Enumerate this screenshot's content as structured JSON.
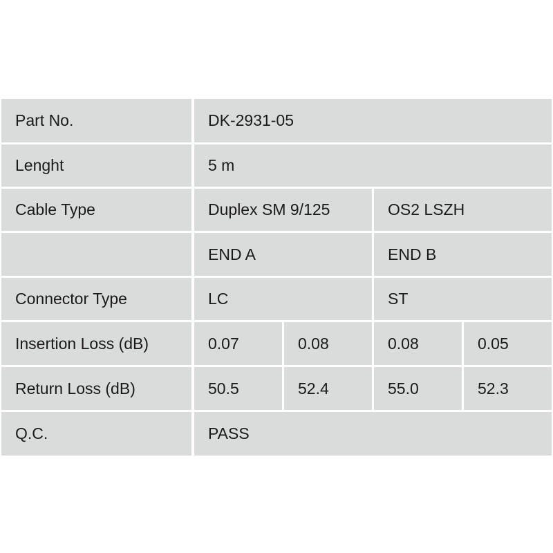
{
  "table": {
    "part_no": {
      "label": "Part No.",
      "value": "DK-2931-05"
    },
    "length": {
      "label": "Lenght",
      "value": "5 m"
    },
    "cable_type": {
      "label": "Cable Type",
      "value_a": "Duplex SM 9/125",
      "value_b": "OS2 LSZH"
    },
    "ends": {
      "label": "",
      "end_a": "END A",
      "end_b": "END B"
    },
    "connector_type": {
      "label": "Connector Type",
      "end_a": "LC",
      "end_b": "ST"
    },
    "insertion_loss": {
      "label": "Insertion Loss (dB)",
      "values": [
        "0.07",
        "0.08",
        "0.08",
        "0.05"
      ]
    },
    "return_loss": {
      "label": "Return Loss (dB)",
      "values": [
        "50.5",
        "52.4",
        "55.0",
        "52.3"
      ]
    },
    "qc": {
      "label": "Q.C.",
      "value": "PASS"
    }
  }
}
